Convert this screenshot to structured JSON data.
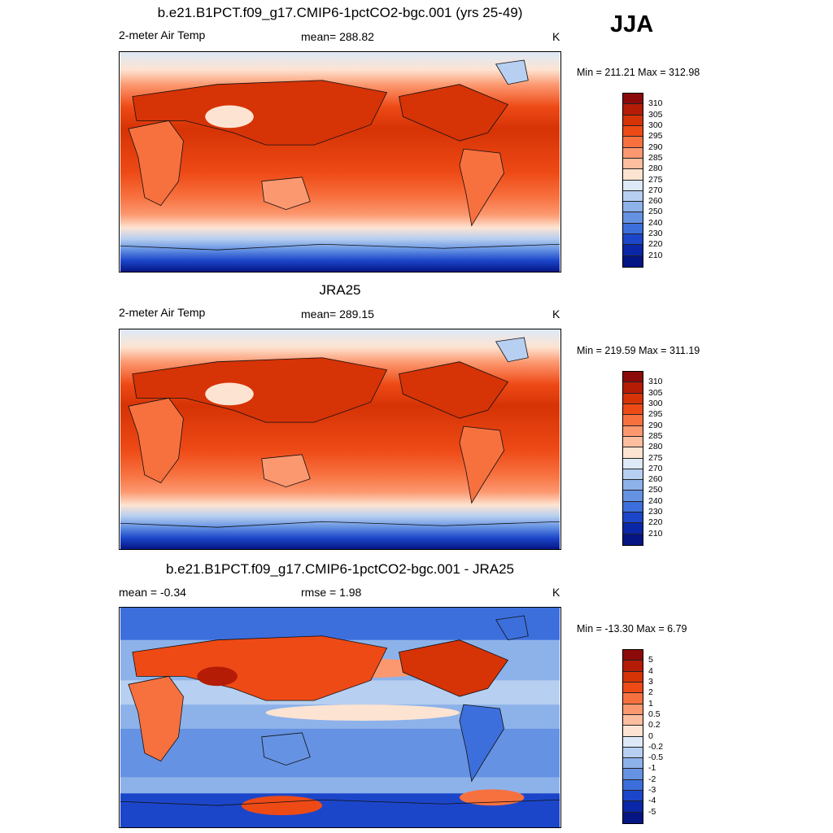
{
  "season": "JJA",
  "panels": [
    {
      "title": "b.e21.B1PCT.f09_g17.CMIP6-1pctCO2-bgc.001 (yrs 25-49)",
      "left_label": "2-meter Air Temp",
      "center_label": "mean= 288.82",
      "units": "K",
      "minmax": "Min = 211.21 Max = 312.98"
    },
    {
      "title": "JRA25",
      "left_label": "2-meter Air Temp",
      "center_label": "mean= 289.15",
      "units": "K",
      "minmax": "Min = 219.59 Max = 311.19"
    },
    {
      "title": "b.e21.B1PCT.f09_g17.CMIP6-1pctCO2-bgc.001 - JRA25",
      "left_label": "mean =  -0.34",
      "center_label": "rmse =   1.98",
      "units": "K",
      "minmax": "Min = -13.30 Max =   6.79"
    }
  ],
  "temp_legend": {
    "labels": [
      "310",
      "305",
      "300",
      "295",
      "290",
      "285",
      "280",
      "275",
      "270",
      "260",
      "250",
      "240",
      "230",
      "220",
      "210"
    ],
    "colors": [
      "#8c0a0a",
      "#b51c06",
      "#d63306",
      "#ee4a16",
      "#f7713f",
      "#fc9870",
      "#fdbd9f",
      "#fde4d2",
      "#dde9f7",
      "#b7cff0",
      "#8db2ea",
      "#6592e3",
      "#3d6fdc",
      "#1c46c9",
      "#0a27a8",
      "#051584"
    ]
  },
  "diff_legend": {
    "labels": [
      "5",
      "4",
      "3",
      "2",
      "1",
      "0.5",
      "0.2",
      "0",
      "-0.2",
      "-0.5",
      "-1",
      "-2",
      "-3",
      "-4",
      "-5"
    ],
    "colors": [
      "#8c0a0a",
      "#b51c06",
      "#d63306",
      "#ee4a16",
      "#f7713f",
      "#fc9870",
      "#fdbd9f",
      "#fde4d2",
      "#dde9f7",
      "#b7cff0",
      "#8db2ea",
      "#6592e3",
      "#3d6fdc",
      "#1c46c9",
      "#0a27a8",
      "#051584"
    ]
  }
}
